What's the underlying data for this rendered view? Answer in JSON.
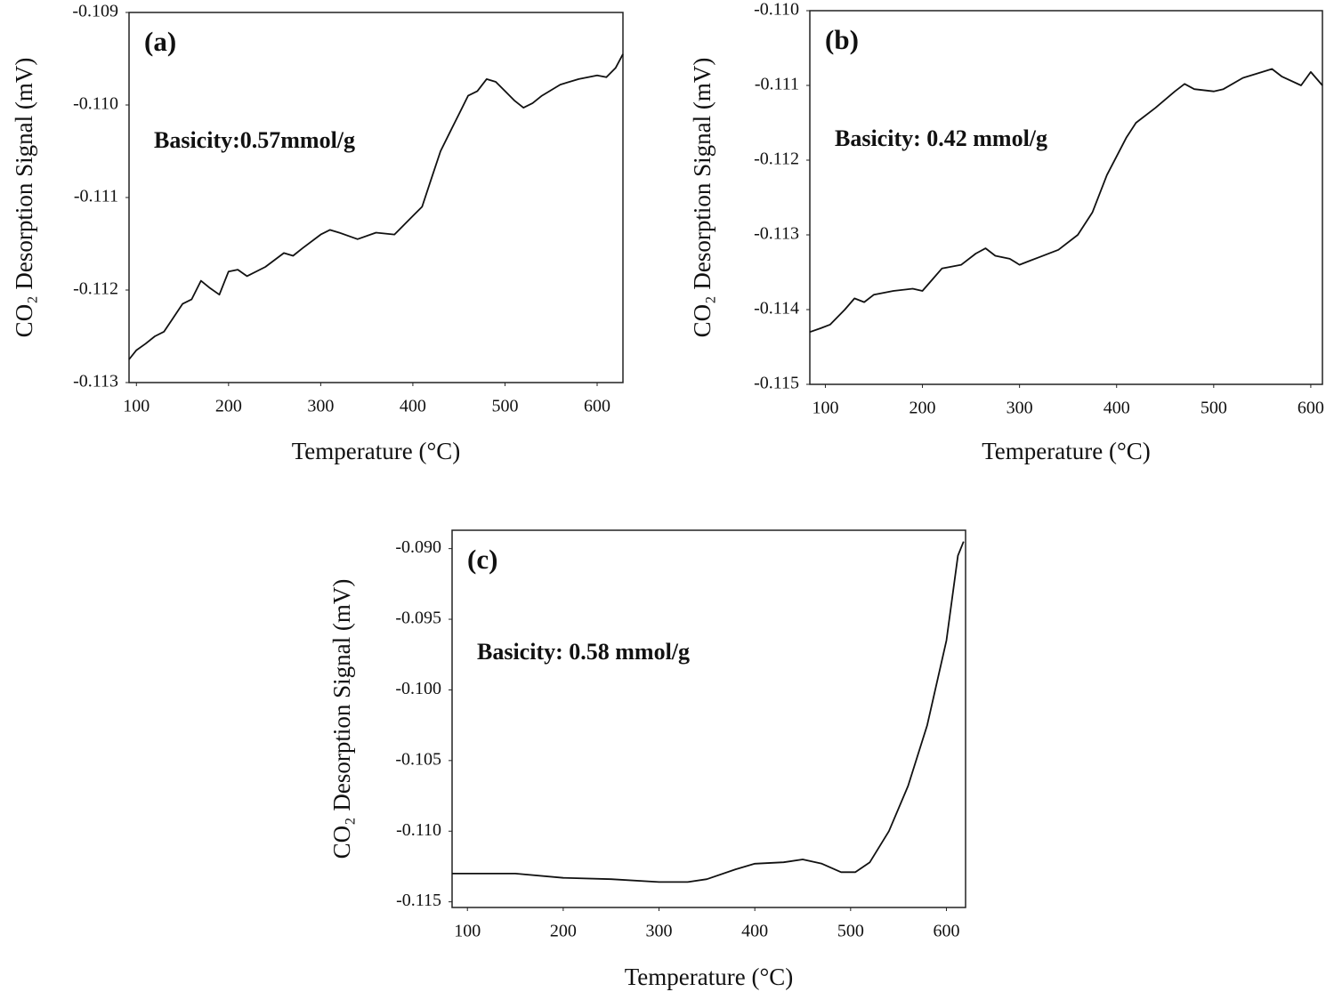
{
  "chart_data": [
    {
      "type": "line",
      "panel_label": "(a)",
      "annotation": "Basicity:0.57mmol/g",
      "xlabel": "Temperature (°C)",
      "ylabel": "CO₂ Desorption Signal (mV)",
      "xlim": [
        92,
        628
      ],
      "xticks": [
        100,
        200,
        300,
        400,
        500,
        600
      ],
      "ylim": [
        -0.113,
        -0.109
      ],
      "yticks": [
        -0.109,
        {
          "value": -0.11,
          "label": "-0.110"
        },
        -0.111,
        -0.112,
        -0.113
      ],
      "color": "#111111",
      "x": [
        92,
        100,
        110,
        120,
        130,
        140,
        150,
        160,
        170,
        180,
        190,
        200,
        210,
        220,
        240,
        260,
        270,
        280,
        300,
        310,
        320,
        340,
        360,
        380,
        400,
        410,
        420,
        430,
        440,
        450,
        460,
        470,
        480,
        490,
        500,
        510,
        520,
        530,
        540,
        560,
        580,
        600,
        610,
        620,
        628
      ],
      "values": [
        -0.11275,
        -0.11265,
        -0.11258,
        -0.1125,
        -0.11245,
        -0.1123,
        -0.11215,
        -0.1121,
        -0.1119,
        -0.11198,
        -0.11205,
        -0.1118,
        -0.11178,
        -0.11185,
        -0.11175,
        -0.1116,
        -0.11163,
        -0.11155,
        -0.1114,
        -0.11135,
        -0.11138,
        -0.11145,
        -0.11138,
        -0.1114,
        -0.1112,
        -0.1111,
        -0.1108,
        -0.1105,
        -0.1103,
        -0.1101,
        -0.1099,
        -0.10985,
        -0.10972,
        -0.10975,
        -0.10985,
        -0.10995,
        -0.11003,
        -0.10998,
        -0.1099,
        -0.10978,
        -0.10972,
        -0.10968,
        -0.1097,
        -0.1096,
        -0.10945
      ]
    },
    {
      "type": "line",
      "panel_label": "(b)",
      "annotation": "Basicity: 0.42 mmol/g",
      "xlabel": "Temperature (°C)",
      "ylabel": "CO₂ Desorption Signal (mV)",
      "xlim": [
        84,
        612
      ],
      "xticks": [
        100,
        200,
        300,
        400,
        500,
        600
      ],
      "ylim": [
        -0.115,
        -0.11
      ],
      "yticks": [
        {
          "value": -0.11,
          "label": "-0.110"
        },
        -0.111,
        -0.112,
        -0.113,
        -0.114,
        -0.115
      ],
      "color": "#111111",
      "x": [
        84,
        95,
        105,
        120,
        130,
        140,
        150,
        170,
        190,
        200,
        210,
        220,
        240,
        255,
        265,
        275,
        290,
        300,
        310,
        320,
        340,
        360,
        375,
        390,
        400,
        410,
        420,
        440,
        460,
        470,
        480,
        500,
        510,
        530,
        550,
        560,
        570,
        590,
        600,
        612
      ],
      "values": [
        -0.1143,
        -0.11425,
        -0.1142,
        -0.114,
        -0.11385,
        -0.1139,
        -0.1138,
        -0.11375,
        -0.11372,
        -0.11375,
        -0.1136,
        -0.11345,
        -0.1134,
        -0.11325,
        -0.11318,
        -0.11328,
        -0.11332,
        -0.1134,
        -0.11335,
        -0.1133,
        -0.1132,
        -0.113,
        -0.1127,
        -0.1122,
        -0.11195,
        -0.1117,
        -0.1115,
        -0.1113,
        -0.11108,
        -0.11098,
        -0.11105,
        -0.11108,
        -0.11105,
        -0.1109,
        -0.11082,
        -0.11078,
        -0.11088,
        -0.111,
        -0.11082,
        -0.111
      ]
    },
    {
      "type": "line",
      "panel_label": "(c)",
      "annotation": "Basicity: 0.58 mmol/g",
      "xlabel": "Temperature (°C)",
      "ylabel": "CO₂ Desorption Signal (mV)",
      "xlim": [
        84,
        620
      ],
      "xticks": [
        100,
        200,
        300,
        400,
        500,
        600
      ],
      "ylim": [
        -0.1154,
        -0.0887
      ],
      "yticks": [
        {
          "value": -0.09,
          "label": "-0.090"
        },
        -0.095,
        {
          "value": -0.1,
          "label": "-0.100"
        },
        -0.105,
        {
          "value": -0.11,
          "label": "-0.110"
        },
        -0.115
      ],
      "color": "#111111",
      "x": [
        84,
        100,
        150,
        200,
        250,
        300,
        330,
        350,
        380,
        400,
        430,
        450,
        470,
        490,
        505,
        520,
        540,
        560,
        580,
        600,
        612,
        618
      ],
      "values": [
        -0.113,
        -0.113,
        -0.113,
        -0.1133,
        -0.1134,
        -0.1136,
        -0.1136,
        -0.1134,
        -0.1127,
        -0.1123,
        -0.1122,
        -0.112,
        -0.1123,
        -0.1129,
        -0.1129,
        -0.1122,
        -0.11,
        -0.1068,
        -0.1025,
        -0.0965,
        -0.0905,
        -0.0895
      ]
    }
  ]
}
